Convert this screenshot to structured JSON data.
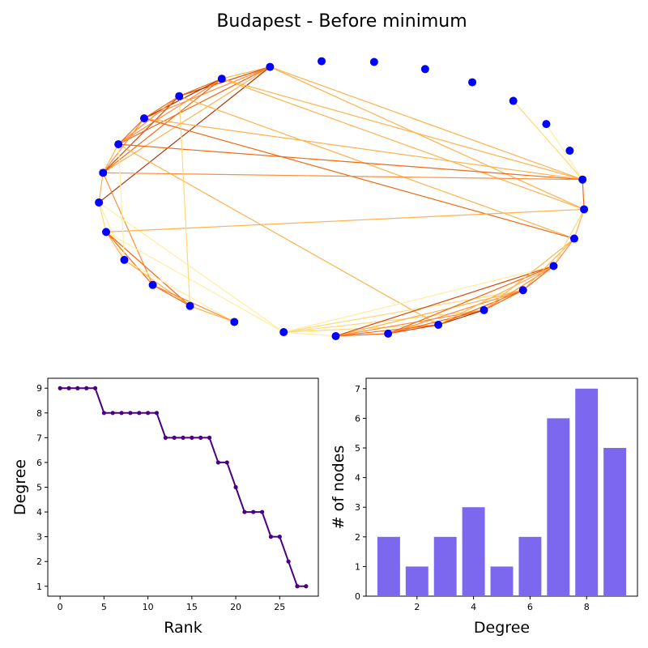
{
  "title": "Budapest - Before minimum",
  "colors": {
    "node": "#0000ff",
    "degree_line": "#4b0082",
    "hist_bar": "#7b68ee",
    "edge_palette": [
      "#ffeda0",
      "#fed976",
      "#feb24c",
      "#fd8d3c",
      "#f16913",
      "#d94801",
      "#a63603"
    ]
  },
  "chart_data": [
    {
      "type": "network",
      "title": "Budapest - Before minimum",
      "nodes": [
        {
          "id": 0
        },
        {
          "id": 1
        },
        {
          "id": 2
        },
        {
          "id": 3
        },
        {
          "id": 4
        },
        {
          "id": 5
        },
        {
          "id": 6
        },
        {
          "id": 7
        },
        {
          "id": 8
        },
        {
          "id": 9
        },
        {
          "id": 10
        },
        {
          "id": 11
        },
        {
          "id": 12
        },
        {
          "id": 13
        },
        {
          "id": 14
        },
        {
          "id": 15
        },
        {
          "id": 16
        },
        {
          "id": 17
        },
        {
          "id": 18
        },
        {
          "id": 19
        },
        {
          "id": 20
        },
        {
          "id": 21
        },
        {
          "id": 22
        },
        {
          "id": 23
        },
        {
          "id": 24
        },
        {
          "id": 25
        },
        {
          "id": 26
        },
        {
          "id": 27
        },
        {
          "id": 28
        }
      ],
      "edges": [
        [
          0,
          1,
          0.4
        ],
        [
          0,
          2,
          0.8
        ],
        [
          0,
          3,
          0.5
        ],
        [
          0,
          4,
          0.6
        ],
        [
          0,
          5,
          0.3
        ],
        [
          0,
          6,
          0.9
        ],
        [
          0,
          21,
          0.3
        ],
        [
          0,
          20,
          0.4
        ],
        [
          1,
          2,
          0.6
        ],
        [
          1,
          3,
          0.9
        ],
        [
          1,
          4,
          0.5
        ],
        [
          1,
          5,
          0.7
        ],
        [
          1,
          20,
          0.4
        ],
        [
          1,
          21,
          0.3
        ],
        [
          2,
          3,
          0.7
        ],
        [
          2,
          4,
          0.5
        ],
        [
          2,
          5,
          0.8
        ],
        [
          2,
          19,
          0.4
        ],
        [
          3,
          4,
          0.6
        ],
        [
          3,
          5,
          0.5
        ],
        [
          3,
          21,
          0.3
        ],
        [
          3,
          19,
          0.7
        ],
        [
          4,
          5,
          0.4
        ],
        [
          4,
          21,
          0.6
        ],
        [
          4,
          15,
          0.3
        ],
        [
          5,
          6,
          0.3
        ],
        [
          5,
          9,
          0.5
        ],
        [
          5,
          21,
          0.5
        ],
        [
          6,
          7,
          0.2
        ],
        [
          6,
          8,
          0.1
        ],
        [
          6,
          12,
          0.1
        ],
        [
          7,
          8,
          0.4
        ],
        [
          7,
          9,
          0.6
        ],
        [
          7,
          10,
          0.6
        ],
        [
          7,
          20,
          0.3
        ],
        [
          7,
          12,
          0.1
        ],
        [
          8,
          10,
          0.4
        ],
        [
          8,
          11,
          0.1
        ],
        [
          9,
          10,
          0.7
        ],
        [
          9,
          11,
          0.5
        ],
        [
          10,
          11,
          0.3
        ],
        [
          12,
          13,
          0.1
        ],
        [
          12,
          15,
          0.2
        ],
        [
          12,
          16,
          0.2
        ],
        [
          12,
          17,
          0.2
        ],
        [
          12,
          18,
          0.1
        ],
        [
          13,
          14,
          0.7
        ],
        [
          13,
          15,
          0.6
        ],
        [
          13,
          16,
          0.5
        ],
        [
          13,
          17,
          0.4
        ],
        [
          13,
          18,
          0.8
        ],
        [
          14,
          15,
          0.8
        ],
        [
          14,
          16,
          0.7
        ],
        [
          14,
          17,
          0.5
        ],
        [
          14,
          18,
          0.6
        ],
        [
          15,
          16,
          0.9
        ],
        [
          15,
          17,
          0.6
        ],
        [
          15,
          18,
          0.4
        ],
        [
          16,
          17,
          0.7
        ],
        [
          16,
          18,
          0.5
        ],
        [
          16,
          19,
          0.3
        ],
        [
          17,
          18,
          0.6
        ],
        [
          17,
          19,
          0.4
        ],
        [
          18,
          19,
          0.5
        ],
        [
          18,
          20,
          0.2
        ],
        [
          19,
          20,
          0.3
        ],
        [
          20,
          21,
          0.6
        ],
        [
          24,
          21,
          0.2
        ],
        [
          23,
          21,
          0.1
        ],
        [
          2,
          10,
          0.2
        ],
        [
          4,
          8,
          0.1
        ]
      ]
    },
    {
      "type": "line",
      "title": "",
      "xlabel": "Rank",
      "ylabel": "Degree",
      "x": [
        0,
        1,
        2,
        3,
        4,
        5,
        6,
        7,
        8,
        9,
        10,
        11,
        12,
        13,
        14,
        15,
        16,
        17,
        18,
        19,
        20,
        21,
        22,
        23,
        24,
        25,
        26,
        27,
        28
      ],
      "y": [
        9,
        9,
        9,
        9,
        9,
        8,
        8,
        8,
        8,
        8,
        8,
        8,
        7,
        7,
        7,
        7,
        7,
        7,
        6,
        6,
        5,
        4,
        4,
        4,
        3,
        3,
        2,
        1,
        1
      ],
      "xlim": [
        -1.4,
        29.4
      ],
      "ylim": [
        0.6,
        9.4
      ],
      "xticks": [
        0,
        5,
        10,
        15,
        20,
        25
      ],
      "yticks": [
        1,
        2,
        3,
        4,
        5,
        6,
        7,
        8,
        9
      ],
      "grid": false
    },
    {
      "type": "bar",
      "title": "",
      "xlabel": "Degree",
      "ylabel": "# of nodes",
      "categories": [
        1,
        2,
        3,
        4,
        5,
        6,
        7,
        8,
        9
      ],
      "values": [
        2,
        1,
        2,
        3,
        1,
        2,
        6,
        7,
        5
      ],
      "xlim": [
        0.2,
        9.8
      ],
      "ylim": [
        0,
        7.35
      ],
      "xticks": [
        2,
        4,
        6,
        8
      ],
      "yticks": [
        0,
        1,
        2,
        3,
        4,
        5,
        6,
        7
      ],
      "grid": false
    }
  ]
}
